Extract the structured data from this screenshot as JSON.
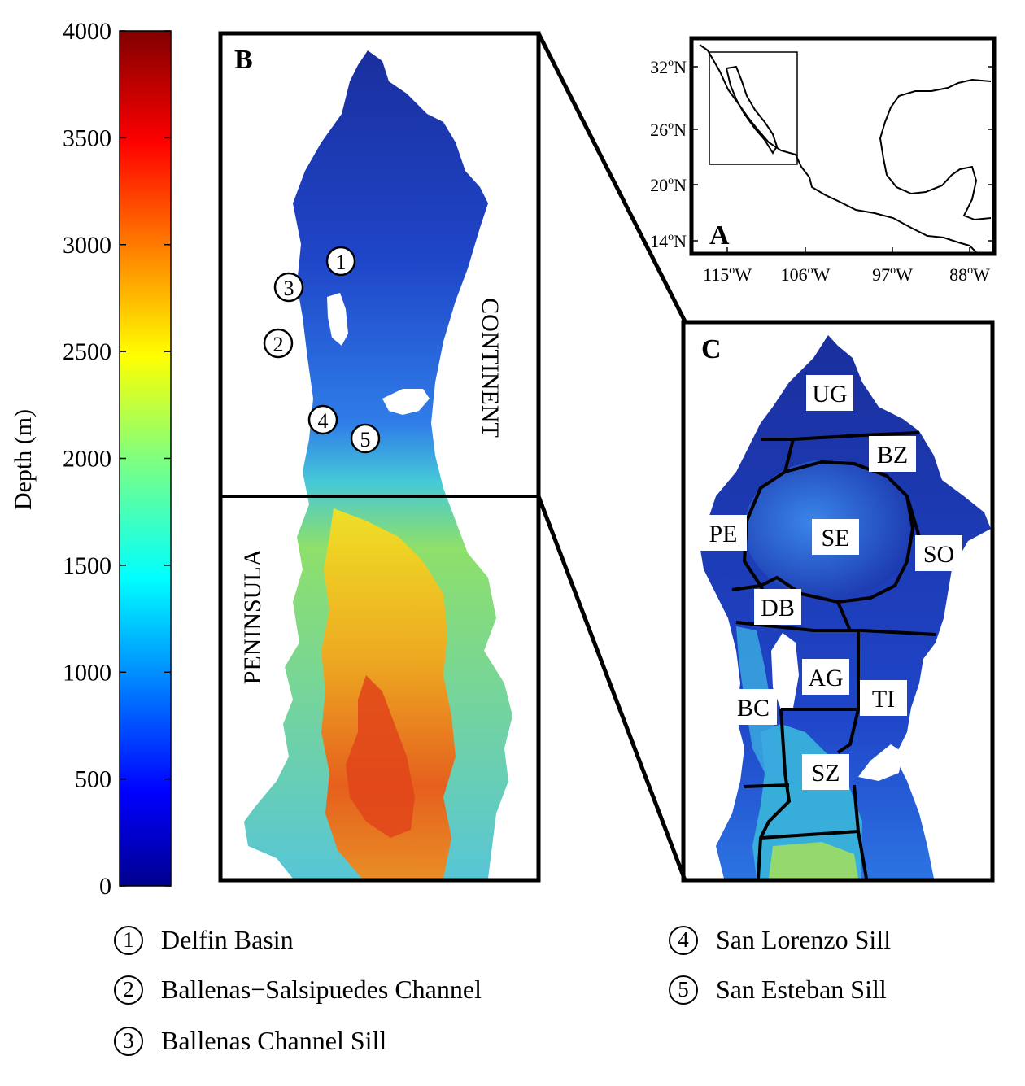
{
  "colorbar": {
    "label": "Depth (m)",
    "ticks": [
      "4000",
      "3500",
      "3000",
      "2500",
      "2000",
      "1500",
      "1000",
      "500",
      "0"
    ],
    "range": [
      0,
      4000
    ],
    "colormap": "jet"
  },
  "panel_a": {
    "letter": "A",
    "lat_ticks": [
      "32",
      "26",
      "20",
      "14"
    ],
    "lat_suffix": "N",
    "lon_ticks": [
      "115",
      "106",
      "97",
      "88"
    ],
    "lon_suffix": "W",
    "degree_mark": "o"
  },
  "panel_b": {
    "letter": "B",
    "label_continent": "CONTINENT",
    "label_peninsula": "PENINSULA",
    "markers": [
      "1",
      "2",
      "3",
      "4",
      "5"
    ]
  },
  "panel_c": {
    "letter": "C",
    "regions": [
      "UG",
      "BZ",
      "PE",
      "SE",
      "SO",
      "DB",
      "AG",
      "TI",
      "BC",
      "SZ"
    ]
  },
  "legend": [
    {
      "num": "1",
      "text": "Delfin Basin"
    },
    {
      "num": "2",
      "text": "Ballenas−Salsipuedes Channel"
    },
    {
      "num": "3",
      "text": "Ballenas Channel Sill"
    },
    {
      "num": "4",
      "text": "San Lorenzo Sill"
    },
    {
      "num": "5",
      "text": "San Esteban Sill"
    }
  ],
  "colors": {
    "deep_blue": "#1a2f9e",
    "mid_blue": "#2a5ce0",
    "cyan": "#39c6d8",
    "yellow": "#f2d21a",
    "orange": "#f08a1c",
    "red": "#e03a12"
  }
}
